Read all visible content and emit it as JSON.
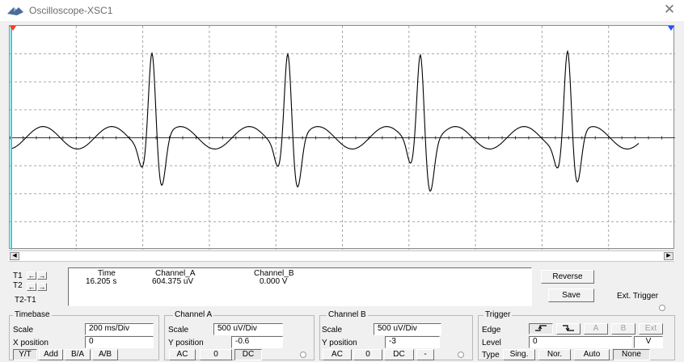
{
  "window": {
    "title": "Oscilloscope-XSC1",
    "close_glyph": "✕"
  },
  "cursors": {
    "t1_label": "T1",
    "t2_label": "T2",
    "t2_t1_label": "T2-T1",
    "left_arrow": "←",
    "right_arrow": "→"
  },
  "readout": {
    "time_header": "Time",
    "channel_a_header": "Channel_A",
    "channel_b_header": "Channel_B",
    "time": "16.205 s",
    "channel_a": "604.375 uV",
    "channel_b": "0.000 V"
  },
  "buttons": {
    "reverse": "Reverse",
    "save": "Save",
    "ext_trigger": "Ext. Trigger"
  },
  "timebase": {
    "legend": "Timebase",
    "scale_label": "Scale",
    "scale": "200 ms/Div",
    "xpos_label": "X position",
    "xpos": "0",
    "modes": [
      "Y/T",
      "Add",
      "B/A",
      "A/B"
    ]
  },
  "channel_a": {
    "legend": "Channel A",
    "scale_label": "Scale",
    "scale": "500 uV/Div",
    "ypos_label": "Y position",
    "ypos": "-0.6",
    "coupling": [
      "AC",
      "0",
      "DC"
    ]
  },
  "channel_b": {
    "legend": "Channel B",
    "scale_label": "Scale",
    "scale": "500 uV/Div",
    "ypos_label": "Y position",
    "ypos": "-3",
    "coupling": [
      "AC",
      "0",
      "DC",
      "-"
    ]
  },
  "trigger": {
    "legend": "Trigger",
    "edge_label": "Edge",
    "level_label": "Level",
    "level": "0",
    "level_unit": "V",
    "sources": [
      "A",
      "B",
      "Ext"
    ],
    "type_label": "Type",
    "types": [
      "Sing.",
      "Nor.",
      "Auto",
      "None"
    ]
  },
  "colors": {
    "trace": "#000000",
    "grid": "#a6a6a6",
    "cursor1": "#ff3b1f",
    "cursor2": "#1f4fff",
    "cursor_line": "#2fd0e6"
  }
}
